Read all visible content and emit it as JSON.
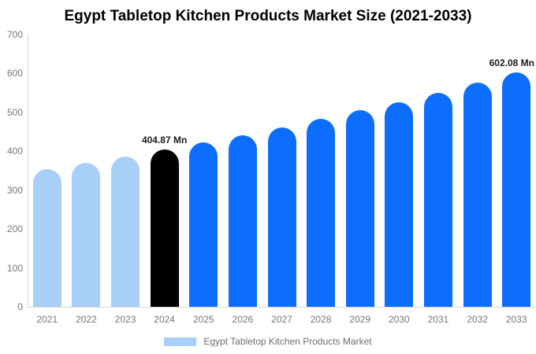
{
  "title": "Egypt Tabletop Kitchen Products Market Size (2021-2033)",
  "legend": {
    "label": "Egypt Tabletop Kitchen Products Market",
    "swatch_color": "#a7cff7"
  },
  "colors": {
    "background": "#ffffff",
    "past_bar": "#a7cff7",
    "highlight_bar": "#000000",
    "forecast_bar": "#0d6efd",
    "axis_line": "#d6d6d6",
    "tick_text": "#757575",
    "annotation_text": "#1a1a1a"
  },
  "chart_data": {
    "type": "bar",
    "title": "Egypt Tabletop Kitchen Products Market Size (2021-2033)",
    "categories": [
      "2021",
      "2022",
      "2023",
      "2024",
      "2025",
      "2026",
      "2027",
      "2028",
      "2029",
      "2030",
      "2031",
      "2032",
      "2033"
    ],
    "values": [
      355,
      371,
      387,
      404.87,
      423,
      442,
      462,
      483,
      505,
      527,
      551,
      576,
      602.08
    ],
    "unit": "Mn",
    "bar_roles": [
      "past",
      "past",
      "past",
      "highlight",
      "forecast",
      "forecast",
      "forecast",
      "forecast",
      "forecast",
      "forecast",
      "forecast",
      "forecast",
      "forecast"
    ],
    "annotations": [
      {
        "category": "2024",
        "text": "404.87 Mn"
      },
      {
        "category": "2033",
        "text": "602.08 Mn"
      }
    ],
    "xlabel": "",
    "ylabel": "",
    "ylim": [
      0,
      700
    ],
    "yticks": [
      0,
      100,
      200,
      300,
      400,
      500,
      600,
      700
    ],
    "grid": false,
    "legend_position": "bottom"
  }
}
